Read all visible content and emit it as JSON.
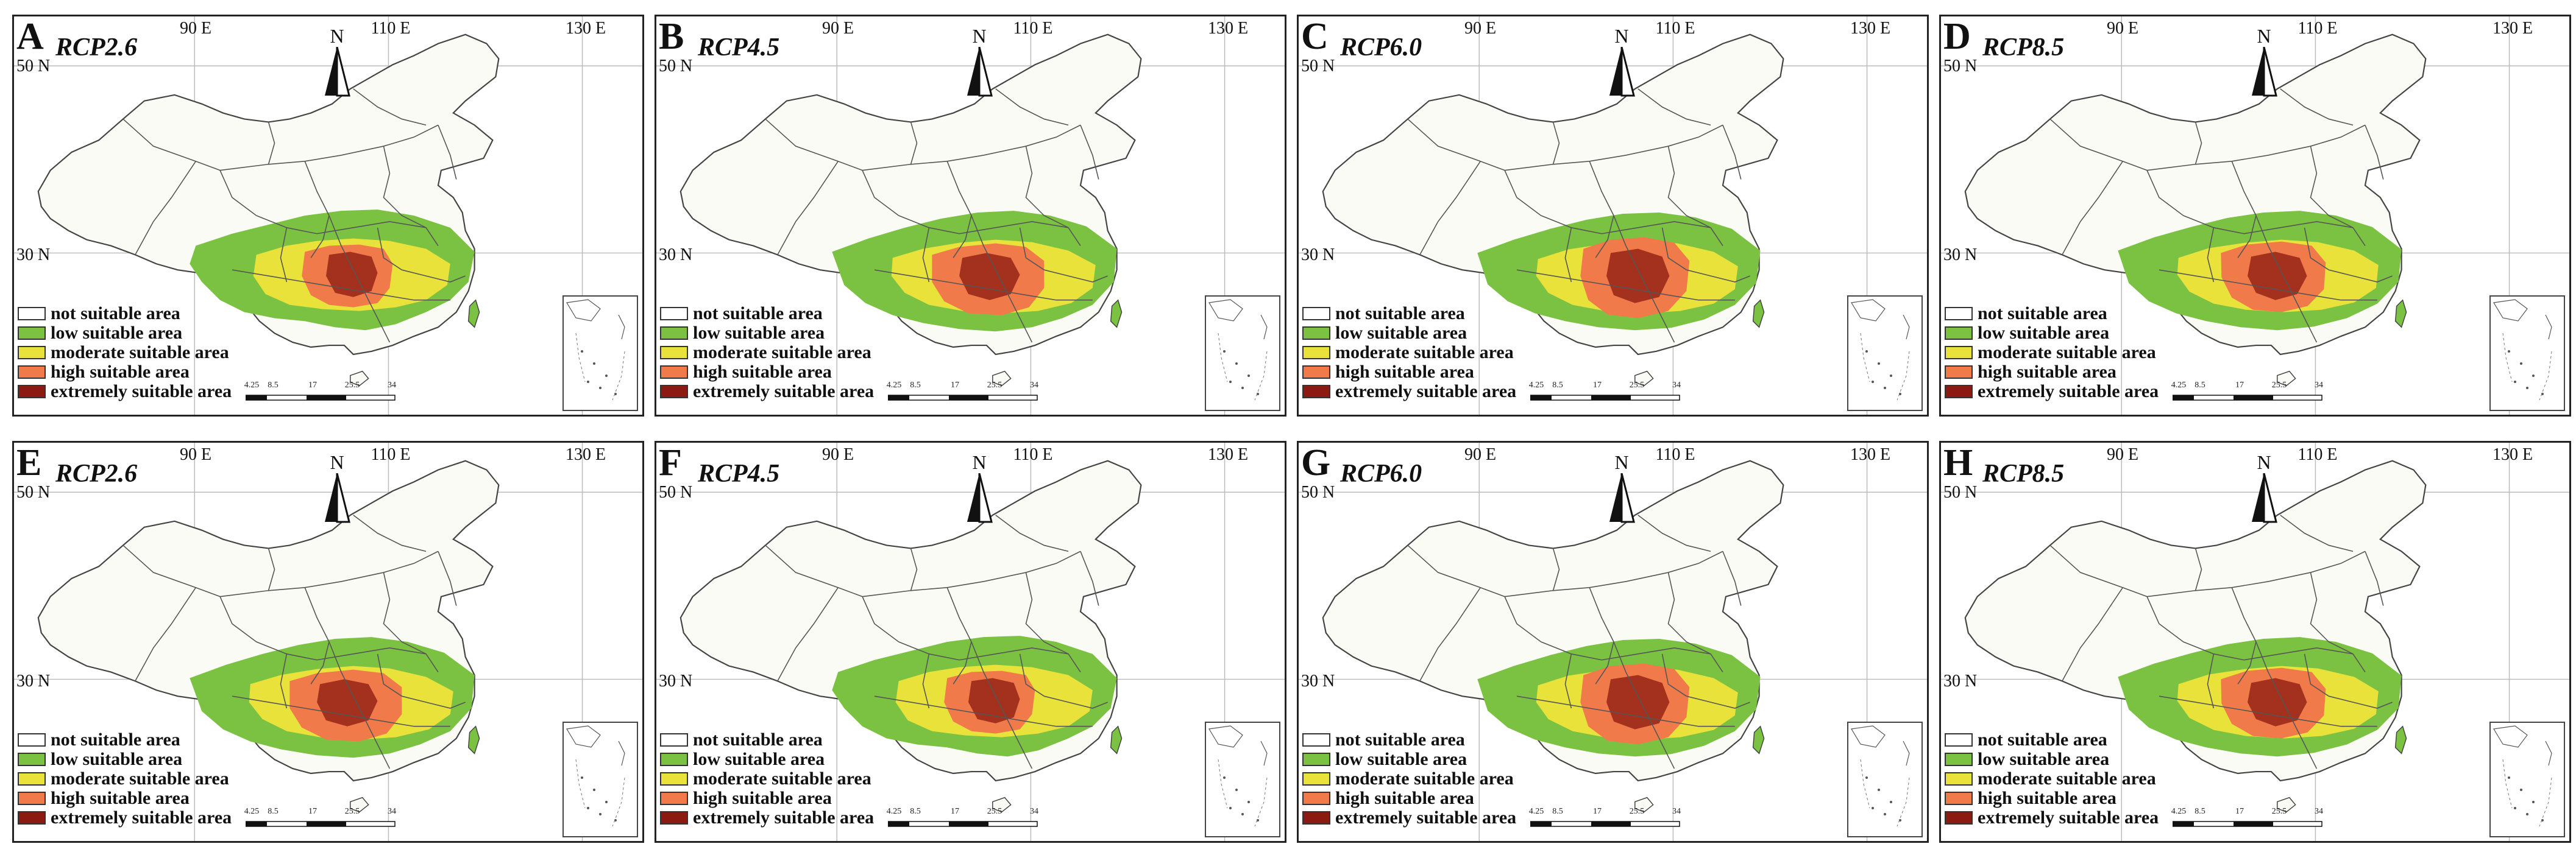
{
  "figure": {
    "panels": [
      {
        "letter": "A",
        "scenario": "RCP2.6",
        "pattern": "a"
      },
      {
        "letter": "B",
        "scenario": "RCP4.5",
        "pattern": "b"
      },
      {
        "letter": "C",
        "scenario": "RCP6.0",
        "pattern": "c"
      },
      {
        "letter": "D",
        "scenario": "RCP8.5",
        "pattern": "d"
      },
      {
        "letter": "E",
        "scenario": "RCP2.6",
        "pattern": "b"
      },
      {
        "letter": "F",
        "scenario": "RCP4.5",
        "pattern": "a"
      },
      {
        "letter": "G",
        "scenario": "RCP6.0",
        "pattern": "c"
      },
      {
        "letter": "H",
        "scenario": "RCP8.5",
        "pattern": "d"
      }
    ],
    "longitude_labels": [
      "90 E",
      "110 E",
      "130 E"
    ],
    "latitude_labels": [
      "50 N",
      "30 N"
    ],
    "north_label": "N",
    "legend": [
      {
        "label": "not suitable area",
        "color": "#ffffff"
      },
      {
        "label": "low suitable area",
        "color": "#7cc242"
      },
      {
        "label": "moderate suitable area",
        "color": "#e8e23a"
      },
      {
        "label": "high suitable area",
        "color": "#f07a4a"
      },
      {
        "label": "extremely suitable area",
        "color": "#8b1a10"
      }
    ],
    "scale_labels": [
      "4.25",
      "8.5",
      "17",
      "25.5",
      "34"
    ],
    "colors": {
      "land": "#fbfbf5",
      "border": "#555555",
      "low": "#7cc242",
      "moderate": "#e8e23a",
      "high": "#f07a4a",
      "extreme": "#8b1a10"
    }
  }
}
